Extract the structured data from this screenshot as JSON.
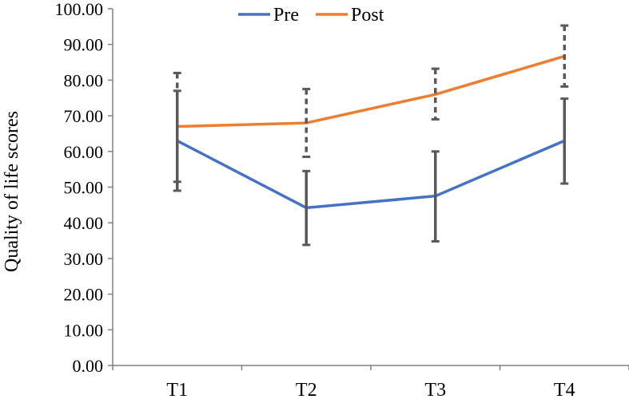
{
  "chart_data": {
    "type": "line",
    "title": "",
    "xlabel": "",
    "ylabel": "Quality of life scores",
    "categories": [
      "T1",
      "T2",
      "T3",
      "T4"
    ],
    "ylim": [
      0,
      100
    ],
    "ytick_labels": [
      "0.00",
      "10.00",
      "20.00",
      "30.00",
      "40.00",
      "50.00",
      "60.00",
      "70.00",
      "80.00",
      "90.00",
      "100.00"
    ],
    "legend_position": "top",
    "series": [
      {
        "name": "Pre",
        "color": "#4472C4",
        "values": [
          63,
          44.2,
          47.5,
          63
        ],
        "error_low": [
          49,
          33.8,
          34.8,
          51
        ],
        "error_high": [
          77,
          54.5,
          60,
          74.8
        ],
        "error_color": "#595959",
        "error_style": "solid"
      },
      {
        "name": "Post",
        "color": "#ED7D31",
        "values": [
          67,
          68,
          76,
          86.7
        ],
        "error_low": [
          51.5,
          58.5,
          69,
          78.2
        ],
        "error_high": [
          82,
          77.5,
          83.2,
          95.3
        ],
        "error_color": "#595959",
        "error_style": "dashed"
      }
    ]
  }
}
